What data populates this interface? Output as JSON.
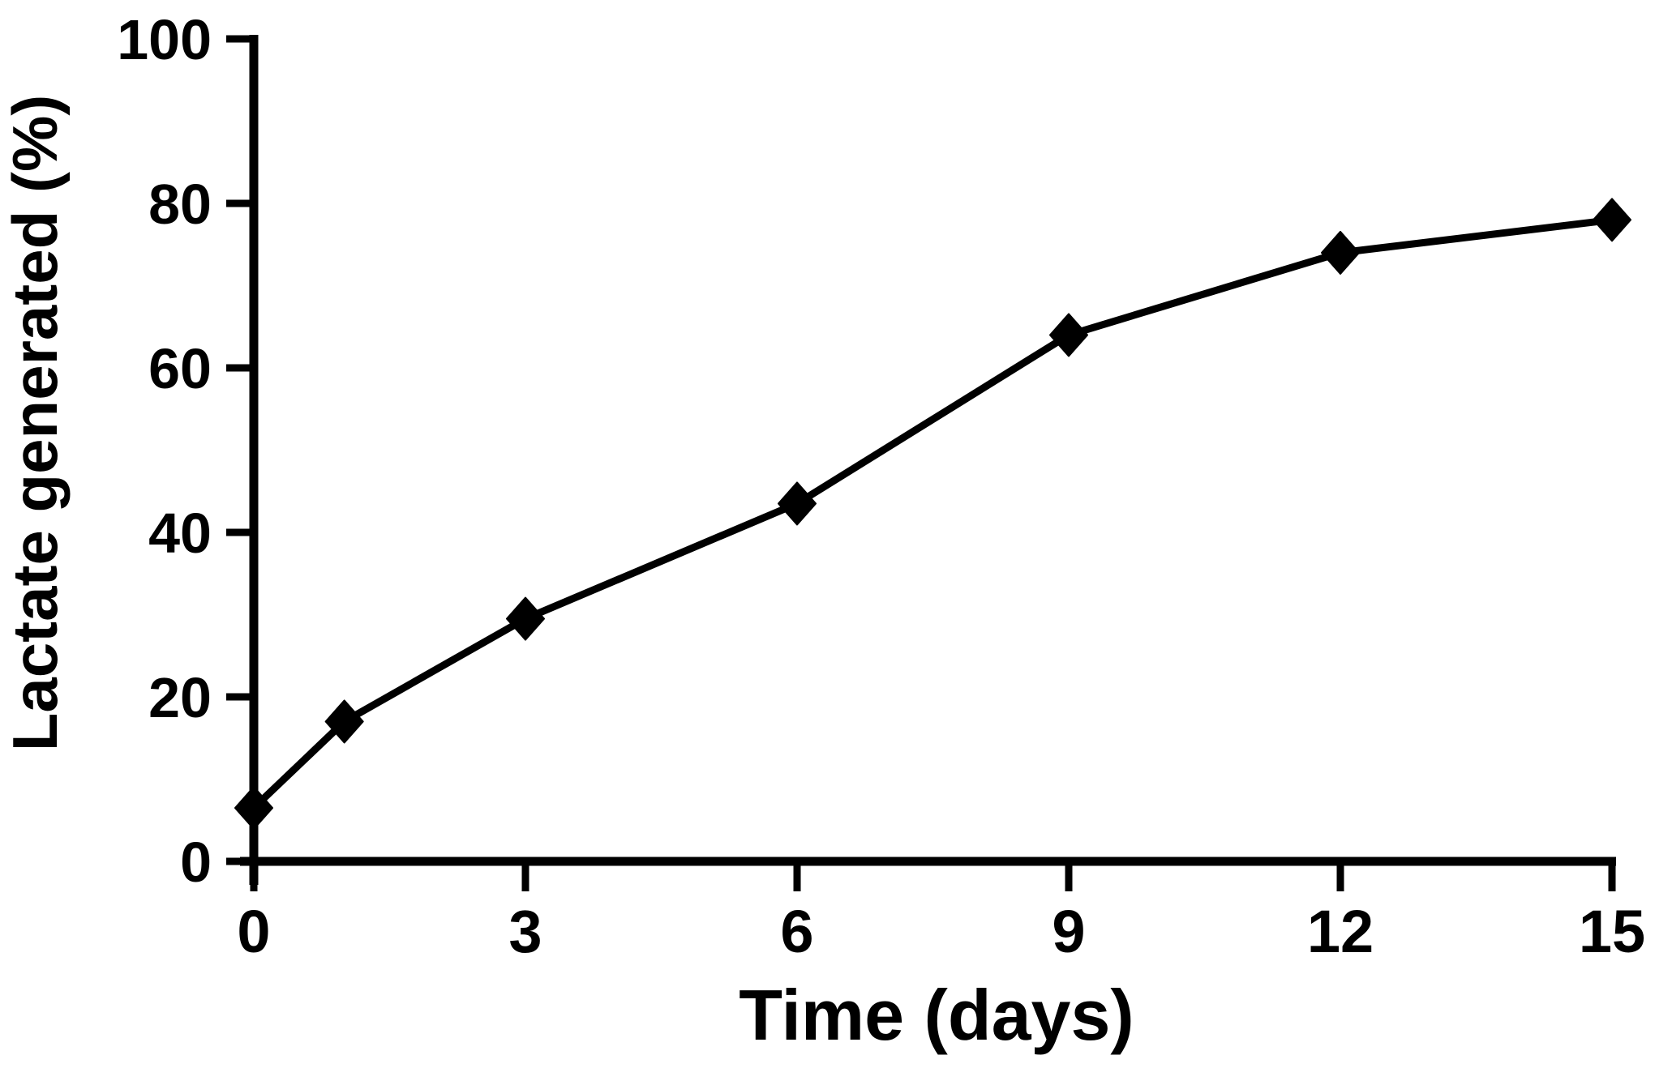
{
  "figure": {
    "background": "#ffffff",
    "ink": "#000000",
    "role_description": "line chart"
  },
  "chart_data": {
    "type": "line",
    "title": "",
    "xlabel": "Time (days)",
    "ylabel": "Lactate generated (%)",
    "x": [
      0,
      1,
      3,
      6,
      9,
      12,
      15
    ],
    "series": [
      {
        "name": "Lactate generated",
        "values": [
          6.5,
          17,
          29.5,
          43.5,
          64,
          74,
          78
        ],
        "color": "#000000",
        "marker": "diamond"
      }
    ],
    "xticks": [
      0,
      3,
      6,
      9,
      12,
      15
    ],
    "xtick_labels": [
      "0",
      "3",
      "6",
      "9",
      "12",
      "15"
    ],
    "yticks": [
      0,
      20,
      40,
      60,
      80,
      100
    ],
    "ytick_labels": [
      "0",
      "20",
      "40",
      "60",
      "80",
      "100"
    ],
    "xlim": [
      0,
      15
    ],
    "ylim": [
      0,
      100
    ],
    "grid": false,
    "legend": "none"
  }
}
